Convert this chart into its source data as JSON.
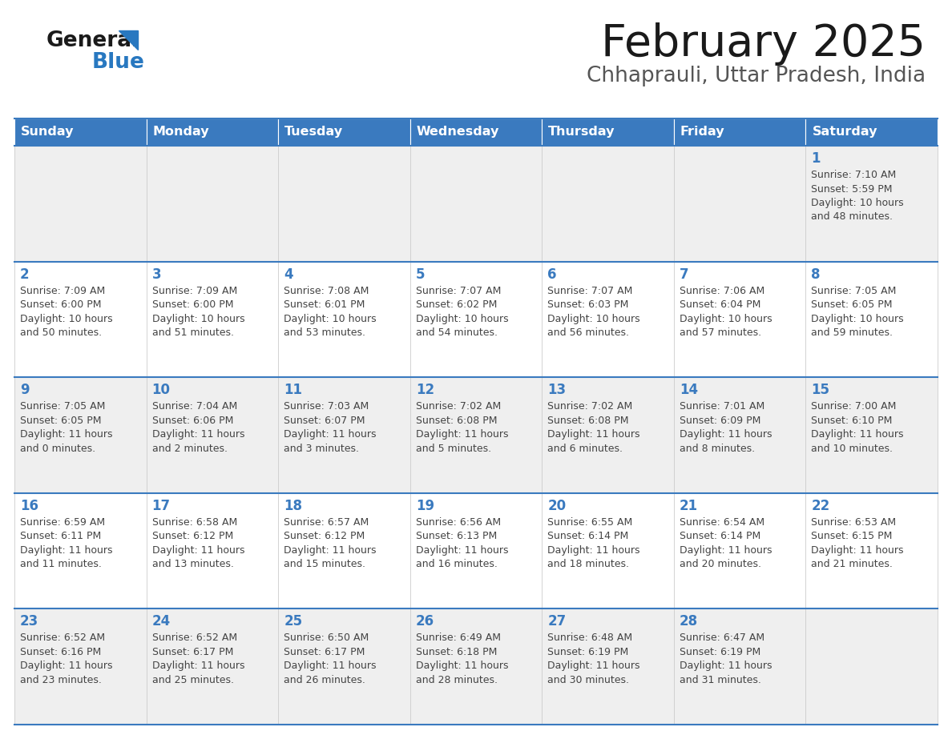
{
  "title": "February 2025",
  "subtitle": "Chhaprauli, Uttar Pradesh, India",
  "header_bg": "#3a7abf",
  "header_text_color": "#ffffff",
  "day_names": [
    "Sunday",
    "Monday",
    "Tuesday",
    "Wednesday",
    "Thursday",
    "Friday",
    "Saturday"
  ],
  "cell_bg_light": "#efefef",
  "cell_bg_white": "#ffffff",
  "cell_border_color": "#3a7abf",
  "text_color": "#444444",
  "day_number_color": "#3a7abf",
  "logo_general_color": "#1a1a1a",
  "logo_blue_color": "#2878c0",
  "days": [
    {
      "date": 1,
      "col": 6,
      "row": 0,
      "sunrise": "7:10 AM",
      "sunset": "5:59 PM",
      "daylight": "10 hours and 48 minutes"
    },
    {
      "date": 2,
      "col": 0,
      "row": 1,
      "sunrise": "7:09 AM",
      "sunset": "6:00 PM",
      "daylight": "10 hours and 50 minutes"
    },
    {
      "date": 3,
      "col": 1,
      "row": 1,
      "sunrise": "7:09 AM",
      "sunset": "6:00 PM",
      "daylight": "10 hours and 51 minutes"
    },
    {
      "date": 4,
      "col": 2,
      "row": 1,
      "sunrise": "7:08 AM",
      "sunset": "6:01 PM",
      "daylight": "10 hours and 53 minutes"
    },
    {
      "date": 5,
      "col": 3,
      "row": 1,
      "sunrise": "7:07 AM",
      "sunset": "6:02 PM",
      "daylight": "10 hours and 54 minutes"
    },
    {
      "date": 6,
      "col": 4,
      "row": 1,
      "sunrise": "7:07 AM",
      "sunset": "6:03 PM",
      "daylight": "10 hours and 56 minutes"
    },
    {
      "date": 7,
      "col": 5,
      "row": 1,
      "sunrise": "7:06 AM",
      "sunset": "6:04 PM",
      "daylight": "10 hours and 57 minutes"
    },
    {
      "date": 8,
      "col": 6,
      "row": 1,
      "sunrise": "7:05 AM",
      "sunset": "6:05 PM",
      "daylight": "10 hours and 59 minutes"
    },
    {
      "date": 9,
      "col": 0,
      "row": 2,
      "sunrise": "7:05 AM",
      "sunset": "6:05 PM",
      "daylight": "11 hours and 0 minutes"
    },
    {
      "date": 10,
      "col": 1,
      "row": 2,
      "sunrise": "7:04 AM",
      "sunset": "6:06 PM",
      "daylight": "11 hours and 2 minutes"
    },
    {
      "date": 11,
      "col": 2,
      "row": 2,
      "sunrise": "7:03 AM",
      "sunset": "6:07 PM",
      "daylight": "11 hours and 3 minutes"
    },
    {
      "date": 12,
      "col": 3,
      "row": 2,
      "sunrise": "7:02 AM",
      "sunset": "6:08 PM",
      "daylight": "11 hours and 5 minutes"
    },
    {
      "date": 13,
      "col": 4,
      "row": 2,
      "sunrise": "7:02 AM",
      "sunset": "6:08 PM",
      "daylight": "11 hours and 6 minutes"
    },
    {
      "date": 14,
      "col": 5,
      "row": 2,
      "sunrise": "7:01 AM",
      "sunset": "6:09 PM",
      "daylight": "11 hours and 8 minutes"
    },
    {
      "date": 15,
      "col": 6,
      "row": 2,
      "sunrise": "7:00 AM",
      "sunset": "6:10 PM",
      "daylight": "11 hours and 10 minutes"
    },
    {
      "date": 16,
      "col": 0,
      "row": 3,
      "sunrise": "6:59 AM",
      "sunset": "6:11 PM",
      "daylight": "11 hours and 11 minutes"
    },
    {
      "date": 17,
      "col": 1,
      "row": 3,
      "sunrise": "6:58 AM",
      "sunset": "6:12 PM",
      "daylight": "11 hours and 13 minutes"
    },
    {
      "date": 18,
      "col": 2,
      "row": 3,
      "sunrise": "6:57 AM",
      "sunset": "6:12 PM",
      "daylight": "11 hours and 15 minutes"
    },
    {
      "date": 19,
      "col": 3,
      "row": 3,
      "sunrise": "6:56 AM",
      "sunset": "6:13 PM",
      "daylight": "11 hours and 16 minutes"
    },
    {
      "date": 20,
      "col": 4,
      "row": 3,
      "sunrise": "6:55 AM",
      "sunset": "6:14 PM",
      "daylight": "11 hours and 18 minutes"
    },
    {
      "date": 21,
      "col": 5,
      "row": 3,
      "sunrise": "6:54 AM",
      "sunset": "6:14 PM",
      "daylight": "11 hours and 20 minutes"
    },
    {
      "date": 22,
      "col": 6,
      "row": 3,
      "sunrise": "6:53 AM",
      "sunset": "6:15 PM",
      "daylight": "11 hours and 21 minutes"
    },
    {
      "date": 23,
      "col": 0,
      "row": 4,
      "sunrise": "6:52 AM",
      "sunset": "6:16 PM",
      "daylight": "11 hours and 23 minutes"
    },
    {
      "date": 24,
      "col": 1,
      "row": 4,
      "sunrise": "6:52 AM",
      "sunset": "6:17 PM",
      "daylight": "11 hours and 25 minutes"
    },
    {
      "date": 25,
      "col": 2,
      "row": 4,
      "sunrise": "6:50 AM",
      "sunset": "6:17 PM",
      "daylight": "11 hours and 26 minutes"
    },
    {
      "date": 26,
      "col": 3,
      "row": 4,
      "sunrise": "6:49 AM",
      "sunset": "6:18 PM",
      "daylight": "11 hours and 28 minutes"
    },
    {
      "date": 27,
      "col": 4,
      "row": 4,
      "sunrise": "6:48 AM",
      "sunset": "6:19 PM",
      "daylight": "11 hours and 30 minutes"
    },
    {
      "date": 28,
      "col": 5,
      "row": 4,
      "sunrise": "6:47 AM",
      "sunset": "6:19 PM",
      "daylight": "11 hours and 31 minutes"
    }
  ]
}
